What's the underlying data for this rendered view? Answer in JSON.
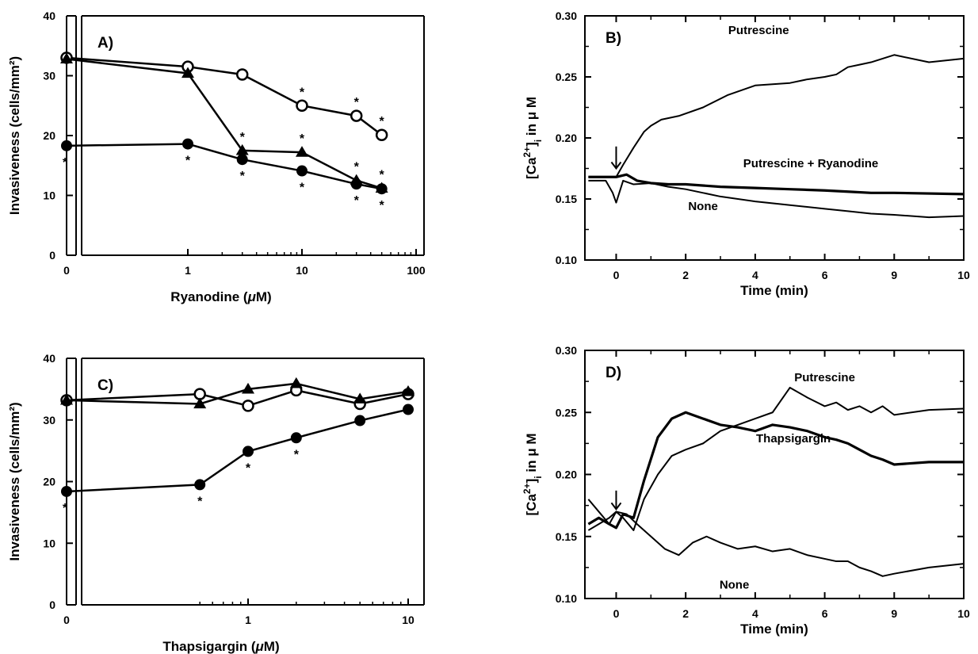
{
  "chart_data": [
    {
      "panel": "A)",
      "type": "line",
      "xscale": "log-with-zero-break",
      "xlabel_pre": "Ryanodine (",
      "xlabel_mu": "μ",
      "xlabel_post": "M)",
      "ylabel": "Invasiveness (cells/mm²)",
      "ylim": [
        0,
        40
      ],
      "yticks": [
        "0",
        "10",
        "20",
        "30",
        "40"
      ],
      "xticks": [
        {
          "v": 0,
          "label": "0"
        },
        {
          "v": 1,
          "label": "1"
        },
        {
          "v": 10,
          "label": "10"
        },
        {
          "v": 100,
          "label": "100"
        }
      ],
      "grid": false,
      "series": [
        {
          "marker": "open-circle",
          "x": [
            0,
            1,
            3,
            10,
            30,
            50
          ],
          "y": [
            33,
            31.5,
            30.2,
            25,
            23.3,
            20.1
          ],
          "stars": [
            [
              10,
              "above"
            ],
            [
              30,
              "above"
            ],
            [
              50,
              "above"
            ]
          ]
        },
        {
          "marker": "filled-triangle",
          "x": [
            0,
            1,
            3,
            10,
            30,
            50
          ],
          "y": [
            32.8,
            30.4,
            17.5,
            17.2,
            12.5,
            11.2
          ],
          "stars": [
            [
              3,
              "above"
            ],
            [
              10,
              "above"
            ],
            [
              30,
              "above"
            ],
            [
              50,
              "above"
            ]
          ]
        },
        {
          "marker": "filled-circle",
          "x": [
            0,
            1,
            3,
            10,
            30,
            50
          ],
          "y": [
            18.3,
            18.6,
            16,
            14.1,
            11.9,
            11.1
          ],
          "stars": [
            [
              0,
              "below"
            ],
            [
              1,
              "below"
            ],
            [
              3,
              "below"
            ],
            [
              10,
              "below"
            ],
            [
              30,
              "below"
            ],
            [
              50,
              "below"
            ]
          ]
        }
      ]
    },
    {
      "panel": "B)",
      "type": "line",
      "xlabel": "Time (min)",
      "ylabel_pre": "[Ca",
      "ylabel_sup": "2+",
      "ylabel_mid": "]",
      "ylabel_sub": "i",
      "ylabel_post": " in μ M",
      "ylim": [
        0.1,
        0.3
      ],
      "yticks": [
        "0.10",
        "0.15",
        "0.20",
        "0.25",
        "0.30"
      ],
      "xticks": [
        "0",
        "2",
        "4",
        "6",
        "9",
        "10"
      ],
      "grid": false,
      "arrow_at": 0,
      "series": [
        {
          "name": "Putrescine",
          "x": [
            -0.8,
            0,
            0.2,
            0.5,
            0.8,
            1.0,
            1.3,
            1.8,
            2.5,
            3.2,
            4.0,
            5.0,
            5.5,
            6.0,
            6.5,
            7.0,
            7.5,
            8.0,
            8.5,
            9.0,
            9.5,
            10
          ],
          "y": [
            0.168,
            0.168,
            0.178,
            0.192,
            0.205,
            0.21,
            0.215,
            0.218,
            0.225,
            0.235,
            0.243,
            0.245,
            0.248,
            0.25,
            0.252,
            0.258,
            0.26,
            0.262,
            0.265,
            0.268,
            0.262,
            0.265
          ]
        },
        {
          "name": "Putrescine + Ryanodine",
          "x": [
            -0.8,
            -0.3,
            0,
            0.3,
            0.6,
            1.0,
            1.5,
            2.0,
            3.0,
            4.0,
            5.0,
            6.0,
            7.0,
            8.0,
            9.0,
            10
          ],
          "y": [
            0.168,
            0.168,
            0.168,
            0.17,
            0.165,
            0.163,
            0.162,
            0.162,
            0.16,
            0.159,
            0.158,
            0.157,
            0.156,
            0.155,
            0.155,
            0.154
          ]
        },
        {
          "name": "None",
          "x": [
            -0.8,
            -0.3,
            -0.1,
            0,
            0.2,
            0.5,
            1.0,
            1.5,
            2.0,
            2.5,
            3.0,
            4.0,
            5.0,
            6.0,
            7.0,
            8.0,
            9.0,
            9.5,
            10
          ],
          "y": [
            0.165,
            0.165,
            0.155,
            0.147,
            0.165,
            0.162,
            0.163,
            0.16,
            0.158,
            0.155,
            0.152,
            0.148,
            0.145,
            0.142,
            0.14,
            0.138,
            0.137,
            0.135,
            0.136
          ]
        }
      ],
      "annotations": [
        {
          "text": "Putrescine",
          "x": 4.1,
          "y": 0.285
        },
        {
          "text": "Putrescine + Ryanodine",
          "x": 5.6,
          "y": 0.176
        },
        {
          "text": "None",
          "x": 2.5,
          "y": 0.141
        }
      ]
    },
    {
      "panel": "C)",
      "type": "line",
      "xscale": "log-with-zero-break",
      "xlabel_pre": "Thapsigargin (",
      "xlabel_mu": "μ",
      "xlabel_post": "M)",
      "ylabel": "Invasiveness (cells/mm²)",
      "ylim": [
        0,
        40
      ],
      "yticks": [
        "0",
        "10",
        "20",
        "30",
        "40"
      ],
      "xticks": [
        {
          "v": 0,
          "label": "0"
        },
        {
          "v": 1,
          "label": "1"
        },
        {
          "v": 10,
          "label": "10"
        }
      ],
      "grid": false,
      "series": [
        {
          "marker": "open-circle",
          "x": [
            0,
            0.5,
            1,
            2,
            5,
            10
          ],
          "y": [
            33.2,
            34.2,
            32.3,
            34.8,
            32.6,
            34.2
          ],
          "stars": []
        },
        {
          "marker": "filled-triangle",
          "x": [
            0,
            0.5,
            1,
            2,
            5,
            10
          ],
          "y": [
            33.2,
            32.6,
            35,
            35.9,
            33.4,
            34.6
          ],
          "stars": []
        },
        {
          "marker": "filled-circle",
          "x": [
            0,
            0.5,
            1,
            2,
            5,
            10
          ],
          "y": [
            18.4,
            19.5,
            24.9,
            27.1,
            29.9,
            31.7
          ],
          "stars": [
            [
              0,
              "below"
            ],
            [
              0.5,
              "below"
            ],
            [
              1,
              "below"
            ],
            [
              2,
              "below"
            ]
          ]
        }
      ]
    },
    {
      "panel": "D)",
      "type": "line",
      "xlabel": "Time (min)",
      "ylabel_pre": "[Ca",
      "ylabel_sup": "2+",
      "ylabel_mid": "]",
      "ylabel_sub": "i",
      "ylabel_post": " in μ M",
      "ylim": [
        0.1,
        0.3
      ],
      "yticks": [
        "0.10",
        "0.15",
        "0.20",
        "0.25",
        "0.30"
      ],
      "xticks": [
        "0",
        "2",
        "4",
        "6",
        "9",
        "10"
      ],
      "grid": false,
      "arrow_at": 0,
      "series": [
        {
          "name": "Putrescine",
          "x": [
            -0.8,
            -0.5,
            -0.2,
            0,
            0.2,
            0.5,
            0.8,
            1.2,
            1.6,
            2.0,
            2.5,
            3.0,
            3.5,
            4.0,
            4.5,
            5.0,
            5.5,
            6.0,
            6.5,
            7.0,
            7.5,
            8.0,
            8.5,
            9.0,
            9.5,
            10
          ],
          "y": [
            0.18,
            0.17,
            0.16,
            0.17,
            0.165,
            0.155,
            0.18,
            0.2,
            0.215,
            0.22,
            0.225,
            0.235,
            0.24,
            0.245,
            0.25,
            0.27,
            0.262,
            0.255,
            0.258,
            0.252,
            0.255,
            0.25,
            0.255,
            0.248,
            0.252,
            0.253
          ]
        },
        {
          "name": "Thapsigargin",
          "x": [
            -0.8,
            -0.5,
            -0.2,
            0,
            0.2,
            0.5,
            0.8,
            1.2,
            1.6,
            2.0,
            2.5,
            3.0,
            3.5,
            4.0,
            4.5,
            5.0,
            5.5,
            6.0,
            6.5,
            7.0,
            7.5,
            8.0,
            8.5,
            9.0,
            9.5,
            10
          ],
          "y": [
            0.16,
            0.165,
            0.16,
            0.157,
            0.168,
            0.165,
            0.195,
            0.23,
            0.245,
            0.25,
            0.245,
            0.24,
            0.238,
            0.235,
            0.24,
            0.238,
            0.235,
            0.23,
            0.228,
            0.225,
            0.22,
            0.215,
            0.212,
            0.208,
            0.21,
            0.21
          ]
        },
        {
          "name": "None",
          "x": [
            -0.8,
            -0.5,
            -0.2,
            0,
            0.3,
            0.6,
            1.0,
            1.4,
            1.8,
            2.2,
            2.6,
            3.0,
            3.5,
            4.0,
            4.5,
            5.0,
            5.5,
            6.0,
            6.5,
            7.0,
            7.5,
            8.0,
            8.5,
            9.0,
            9.5,
            10
          ],
          "y": [
            0.155,
            0.16,
            0.165,
            0.17,
            0.168,
            0.16,
            0.15,
            0.14,
            0.135,
            0.145,
            0.15,
            0.145,
            0.14,
            0.142,
            0.138,
            0.14,
            0.135,
            0.132,
            0.13,
            0.13,
            0.125,
            0.122,
            0.118,
            0.12,
            0.125,
            0.128
          ]
        }
      ],
      "annotations": [
        {
          "text": "Putrescine",
          "x": 6.0,
          "y": 0.275
        },
        {
          "text": "Thapsigargin",
          "x": 5.1,
          "y": 0.226
        },
        {
          "text": "None",
          "x": 3.4,
          "y": 0.108
        }
      ]
    }
  ]
}
